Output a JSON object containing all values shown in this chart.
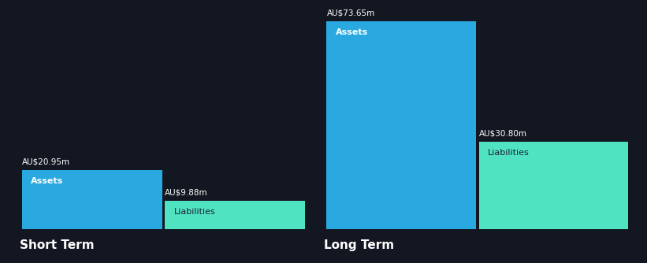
{
  "background_color": "#131722",
  "text_color": "#ffffff",
  "label_dark": "#1a2332",
  "assets_color": "#29a9e0",
  "liabilities_color": "#50e3c2",
  "short_term": {
    "assets_value": 20.95,
    "assets_label": "AU$20.95m",
    "assets_text": "Assets",
    "liabilities_value": 9.88,
    "liabilities_label": "AU$9.88m",
    "liabilities_text": "Liabilities",
    "label": "Short Term"
  },
  "long_term": {
    "assets_value": 73.65,
    "assets_label": "AU$73.65m",
    "assets_text": "Assets",
    "liabilities_value": 30.8,
    "liabilities_label": "AU$30.80m",
    "liabilities_text": "Liabilities",
    "label": "Long Term"
  },
  "max_value": 73.65,
  "figw": 8.21,
  "figh": 3.34,
  "dpi": 100
}
